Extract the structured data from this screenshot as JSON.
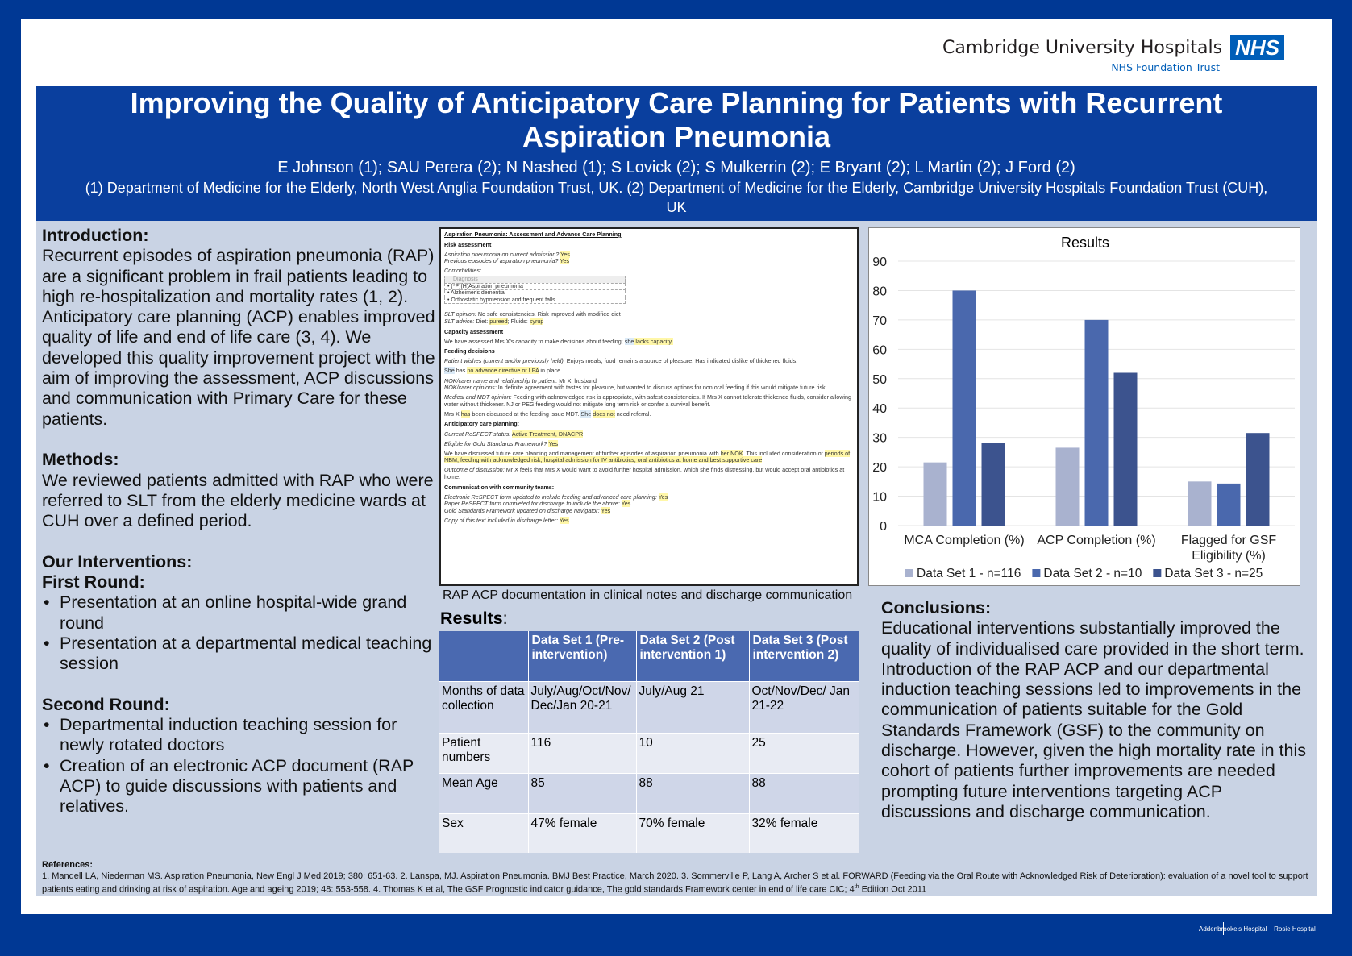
{
  "logo": {
    "org": "Cambridge University Hospitals",
    "nhs": "NHS",
    "trust": "NHS Foundation Trust"
  },
  "header": {
    "title": "Improving the Quality of Anticipatory Care Planning for Patients with Recurrent Aspiration Pneumonia",
    "authors": "E Johnson (1); SAU Perera (2); N Nashed (1); S Lovick (2); S Mulkerrin (2); E Bryant (2); L Martin (2); J Ford (2)",
    "affiliations": "(1) Department of Medicine for the Elderly, North West Anglia Foundation Trust, UK. (2) Department of Medicine for the Elderly, Cambridge University Hospitals Foundation Trust (CUH), UK"
  },
  "intro": {
    "heading": "Introduction:",
    "text": "Recurrent episodes of aspiration pneumonia (RAP) are a significant problem in frail patients leading to high re-hospitalization and mortality rates (1, 2). Anticipatory care planning (ACP) enables improved quality of life and end of life care (3, 4). We developed this quality improvement project with the aim of improving the assessment, ACP discussions and communication with Primary Care for these patients."
  },
  "methods": {
    "heading": "Methods:",
    "text": "We reviewed patients admitted with RAP who were referred to SLT from the elderly medicine wards at CUH over a defined period."
  },
  "interventions": {
    "heading": "Our Interventions:",
    "first_heading": "First Round:",
    "first": [
      "Presentation at an online hospital-wide grand round",
      "Presentation at a departmental medical teaching session"
    ],
    "second_heading": "Second Round:",
    "second": [
      "Departmental induction teaching session for newly rotated doctors",
      "Creation of an electronic ACP document (RAP ACP) to guide discussions with patients and relatives."
    ]
  },
  "notes": {
    "title": "Aspiration Pneumonia: Assessment and Advance Care Planning",
    "risk_h": "Risk assessment",
    "q1": "Aspiration pneumonia on current admission?",
    "q2": "Previous episodes of aspiration pneumonia?",
    "yes": "Yes",
    "comorb": "Comorbidities:",
    "diag_h": "Diagnosis",
    "diag": [
      "• (*P)(H)Aspiration pneumonia",
      "• Alzheimer's dementia",
      "• Orthostatic hypotension and frequent falls"
    ],
    "slt_op_l": "SLT opinion:",
    "slt_op": " No safe consistencies. Risk improved with modified diet",
    "slt_adv_l": "SLT advice:",
    "slt_adv_a": " Diet: ",
    "pureed": "pureed",
    "slt_adv_b": "; Fluids: ",
    "syrup": "syrup",
    "cap_h": "Capacity assessment",
    "cap_a": "We have assessed Mrs X's capacity to make decisions about feeding; ",
    "she": "she",
    "lacks": " lacks capacity.",
    "feed_h": "Feeding decisions",
    "wish_l": "Patient wishes (current and/or previously held):",
    "wish": " Enjoys meals; food remains a source of pleasure. Has indicated dislike of thickened fluids.",
    "She": "She",
    "has": " has ",
    "noad": "no advance directive or LPA",
    "inplace": " in place.",
    "nok1_l": "NOK/carer name and relationship to patient:",
    "nok1": " Mr X, husband",
    "nok2_l": "NOK/carer opinions:",
    "nok2": " In definite agreement with tastes for pleasure, but wanted to discuss options for non oral feeding if this would mitigate future risk.",
    "mdt_l": "Medical and MDT opinion:",
    "mdt": " Feeding with acknowledged risk is appropriate, with safest consistencies. If Mrs X cannot tolerate thickened fluids, consider allowing water without thickener. NJ or PEG feeding would not mitigate long term risk or confer a survival benefit.",
    "mdt2_a": "Mrs X ",
    "hasw": "has",
    "mdt2_b": " been discussed at the feeding issue MDT. ",
    "doesnot": "does not",
    "mdt2_c": " need referral.",
    "acp_h": "Anticipatory care planning:",
    "resp_l": "Current ReSPECT status:",
    "resp": "Active Treatment, DNACPR",
    "gsf_l": "Eligible for Gold Standards Framework?",
    "disc_a": "We have discussed future care planning and management of further episodes of aspiration pneumonia with ",
    "nok": "her NOK",
    "disc_b": ". This included consideration of ",
    "disc_c": "periods of NBM, feeding with acknowledged risk, hospital admission for IV antibiotics, oral antibiotics at home and best supportive care",
    "out_l": "Outcome of discussion:",
    "out": " Mr X feels that Mrs X would want to avoid further hospital admission, which she finds distressing, but would accept oral antibiotics at home.",
    "comm_h": "Communication with community teams:",
    "c1": "Electronic ReSPECT form updated to include feeding and advanced care planning:",
    "c2": "Paper ReSPECT form completed for discharge to include the above:",
    "c3": "Gold Standards Framework updated on discharge navigator:",
    "c4": "Copy of this text included in discharge letter:"
  },
  "caption": "RAP ACP documentation in clinical notes and discharge communication",
  "results": {
    "heading": "Results",
    "colon": ":",
    "columns": [
      "",
      "Data Set 1 (Pre-intervention)",
      "Data Set 2 (Post intervention 1)",
      "Data Set 3 (Post intervention 2)"
    ],
    "rows": [
      [
        "Months of data collection",
        "July/Aug/Oct/Nov/ Dec/Jan 20-21",
        "July/Aug 21",
        "Oct/Nov/Dec/ Jan 21-22"
      ],
      [
        "Patient numbers",
        "116",
        "10",
        "25"
      ],
      [
        "Mean Age",
        "85",
        "88",
        "88"
      ],
      [
        "Sex",
        "47% female",
        "70% female",
        "32% female"
      ]
    ]
  },
  "chart_data": {
    "type": "bar",
    "title": "Results",
    "categories": [
      "MCA Completion (%)",
      "ACP Completion (%)",
      "Flagged for GSF Eligibility (%)"
    ],
    "series": [
      {
        "name": "Data Set 1 - n=116",
        "values": [
          21.5,
          26.5,
          15
        ],
        "color": "#a9b2cf"
      },
      {
        "name": "Data Set 2 - n=10",
        "values": [
          80,
          70,
          14.3
        ],
        "color": "#4a68ad"
      },
      {
        "name": "Data Set 3 - n=25",
        "values": [
          28,
          52,
          31.5
        ],
        "color": "#3c538e"
      }
    ],
    "ylim": [
      0,
      90
    ],
    "yticks": [
      0,
      10,
      20,
      30,
      40,
      50,
      60,
      70,
      80,
      90
    ],
    "grid": true,
    "legend": "bottom"
  },
  "conclusions": {
    "heading": "Conclusions:",
    "text": "Educational interventions substantially improved the quality of individualised care provided in the short term. Introduction of the RAP ACP and our departmental induction teaching sessions led to improvements in the communication of patients suitable for the Gold Standards Framework (GSF) to the community on discharge. However, given the high mortality rate in this cohort of patients further improvements are needed prompting future interventions targeting ACP discussions and discharge communication."
  },
  "references": {
    "heading": "References:",
    "text_a": "1. Mandell LA, Niederman MS. Aspiration Pneumonia, New Engl J Med 2019; 380: 651-63. 2. Lanspa, MJ. Aspiration Pneumonia. BMJ Best Practice, March 2020. 3. Sommerville P, Lang A, Archer S et al. FORWARD (Feeding via the Oral Route with Acknowledged Risk of Deterioration): evaluation of a novel tool to support patients eating and drinking at risk of aspiration. Age and ageing 2019; 48: 553-558. 4. Thomas K et al, The GSF Prognostic indicator guidance, The gold standards Framework center in end of life care CIC; 4",
    "sup": "th",
    "text_b": " Edition Oct 2011"
  },
  "footer": {
    "h1": "Addenbrooke's Hospital",
    "h2": "Rosie Hospital"
  }
}
